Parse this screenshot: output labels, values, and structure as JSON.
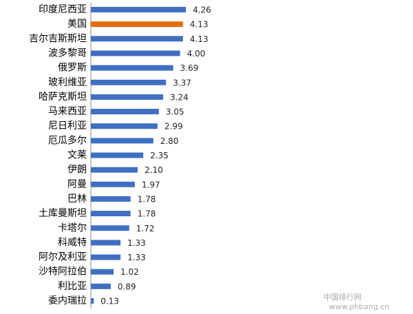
{
  "chart_data": {
    "type": "hbar",
    "categories": [
      "印度尼西亚",
      "美国",
      "吉尔吉斯斯坦",
      "波多黎哥",
      "俄罗斯",
      "玻利维亚",
      "哈萨克斯坦",
      "马来西亚",
      "尼日利亚",
      "厄瓜多尔",
      "文莱",
      "伊朗",
      "阿曼",
      "巴林",
      "土库曼斯坦",
      "卡塔尔",
      "科威特",
      "阿尔及利亚",
      "沙特阿拉伯",
      "利比亚",
      "委内瑞拉"
    ],
    "values": [
      4.26,
      4.13,
      4.13,
      4.0,
      3.69,
      3.37,
      3.24,
      3.05,
      2.99,
      2.8,
      2.35,
      2.1,
      1.97,
      1.78,
      1.78,
      1.72,
      1.33,
      1.33,
      1.02,
      0.89,
      0.13
    ],
    "value_labels": [
      "4.26",
      "4.13",
      "4.13",
      "4.00",
      "3.69",
      "3.37",
      "3.24",
      "3.05",
      "2.99",
      "2.80",
      "2.35",
      "2.10",
      "1.97",
      "1.78",
      "1.78",
      "1.72",
      "1.33",
      "1.33",
      "1.02",
      "0.89",
      "0.13"
    ],
    "colors": [
      "#3f6fc2",
      "#e36c0a",
      "#3f6fc2",
      "#3f6fc2",
      "#3f6fc2",
      "#3f6fc2",
      "#3f6fc2",
      "#3f6fc2",
      "#3f6fc2",
      "#3f6fc2",
      "#3f6fc2",
      "#3f6fc2",
      "#3f6fc2",
      "#3f6fc2",
      "#3f6fc2",
      "#3f6fc2",
      "#3f6fc2",
      "#3f6fc2",
      "#3f6fc2",
      "#3f6fc2",
      "#3f6fc2"
    ],
    "xlim": [
      0,
      5
    ],
    "watermark": [
      "中国排行网",
      "www.phbang.cn"
    ]
  }
}
